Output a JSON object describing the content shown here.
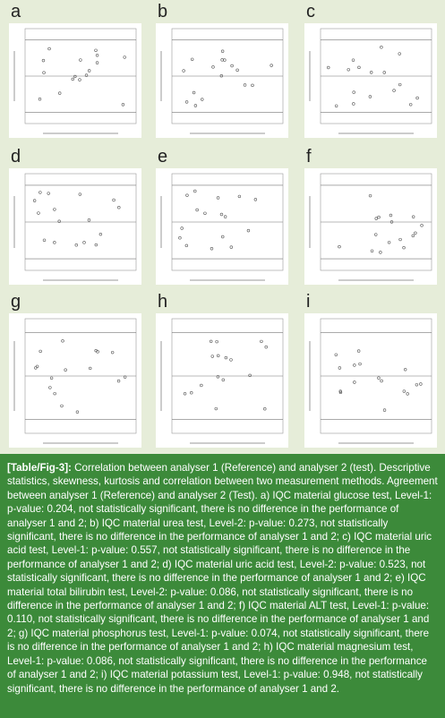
{
  "figure": {
    "panels": [
      {
        "label": "a"
      },
      {
        "label": "b"
      },
      {
        "label": "c"
      },
      {
        "label": "d"
      },
      {
        "label": "e"
      },
      {
        "label": "f"
      },
      {
        "label": "g"
      },
      {
        "label": "h"
      },
      {
        "label": "i"
      }
    ]
  },
  "caption": {
    "label": "[Table/Fig-3]:",
    "text": "Correlation between analyser 1 (Reference) and analyser 2 (test). Descriptive statistics, skewness, kurtosis and correlation between two measurement methods. Agreement between analyser 1 (Reference) and analyser 2 (Test). a) IQC material glucose test, Level-1: p-value: 0.204, not statistically significant, there is no difference in the performance of analyser 1 and 2; b) IQC material urea test, Level-2: p-value: 0.273, not statistically significant, there is no difference in the performance of analyser 1 and 2; c) IQC material uric acid test, Level-1: p-value: 0.557, not statistically significant, there is no difference in the performance of analyser 1 and 2; d) IQC material uric acid test, Level-2: p-value: 0.523, not statistically significant, there is no difference in the performance of analyser 1 and 2; e) IQC material total bilirubin test, Level-2: p-value: 0.086, not statistically significant, there is no difference in the performance of analyser 1 and 2; f) IQC material ALT test, Level-1: p-value: 0.110, not statistically significant, there is no difference in the performance of analyser 1 and 2; g) IQC material phosphorus test, Level-1: p-value: 0.074, not statistically significant, there is no difference in the performance of analyser 1 and 2; h) IQC material magnesium test, Level-1: p-value: 0.086, not statistically significant, there is no difference in the performance of analyser 1 and 2; i) IQC material potassium test, Level-1: p-value: 0.948, not statistically significant, there is no difference in the performance of analyser 1 and 2."
  }
}
